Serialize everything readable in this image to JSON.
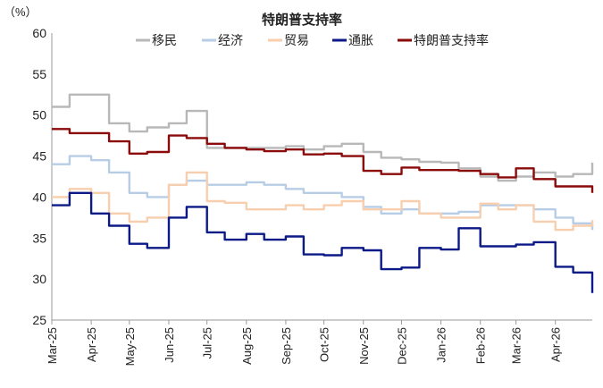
{
  "chart_data": {
    "type": "line",
    "title": "特朗普支持率",
    "ylabel": "（%）",
    "ylim": [
      25,
      60
    ],
    "yticks": [
      25,
      30,
      35,
      40,
      45,
      50,
      55,
      60
    ],
    "xlim": [
      "2025-03-01",
      "2026-04-30"
    ],
    "xticks": [
      {
        "date": "2025-03-01",
        "label": "Mar-25"
      },
      {
        "date": "2025-04-01",
        "label": "Apr-25"
      },
      {
        "date": "2025-05-01",
        "label": "May-25"
      },
      {
        "date": "2025-06-01",
        "label": "Jun-25"
      },
      {
        "date": "2025-07-01",
        "label": "Jul-25"
      },
      {
        "date": "2025-08-01",
        "label": "Aug-25"
      },
      {
        "date": "2025-09-01",
        "label": "Sep-25"
      },
      {
        "date": "2025-10-01",
        "label": "Oct-25"
      },
      {
        "date": "2025-11-01",
        "label": "Nov-25"
      },
      {
        "date": "2025-12-01",
        "label": "Dec-25"
      },
      {
        "date": "2026-01-01",
        "label": "Jan-26"
      },
      {
        "date": "2026-02-01",
        "label": "Feb-26"
      },
      {
        "date": "2026-03-01",
        "label": "Mar-26"
      },
      {
        "date": "2026-04-01",
        "label": "Apr-26"
      }
    ],
    "grid": false,
    "legend_position": "top",
    "x": [
      "2025-03-01",
      "2025-03-15",
      "2025-04-01",
      "2025-04-15",
      "2025-05-01",
      "2025-05-15",
      "2025-06-01",
      "2025-06-15",
      "2025-07-01",
      "2025-07-15",
      "2025-08-01",
      "2025-08-15",
      "2025-09-01",
      "2025-09-15",
      "2025-10-01",
      "2025-10-15",
      "2025-11-01",
      "2025-11-15",
      "2025-12-01",
      "2025-12-15",
      "2026-01-01",
      "2026-01-15",
      "2026-02-01",
      "2026-02-15",
      "2026-03-01",
      "2026-03-15",
      "2026-04-01",
      "2026-04-15",
      "2026-04-30"
    ],
    "series": [
      {
        "name": "移民",
        "color": "#b8b8b8",
        "values": [
          51,
          52.5,
          52.5,
          49,
          48,
          48.5,
          49,
          50.5,
          46,
          46,
          46,
          46,
          46.2,
          45.8,
          46.2,
          46.5,
          45.5,
          44.8,
          44.6,
          44.3,
          44.2,
          43.5,
          42.5,
          42,
          42.5,
          43,
          42.5,
          42.8,
          44.2
        ]
      },
      {
        "name": "经济",
        "color": "#b7cde6",
        "values": [
          44,
          45,
          44.5,
          43,
          40.5,
          40,
          41.5,
          42,
          41.5,
          41.5,
          41.8,
          41.5,
          41,
          40.5,
          40.5,
          40,
          38.8,
          38,
          38.5,
          38,
          38,
          38.2,
          39,
          39,
          39,
          38.5,
          37.5,
          36.8,
          36
        ]
      },
      {
        "name": "贸易",
        "color": "#f8cfae",
        "values": [
          40,
          41,
          40.5,
          38,
          37,
          37.5,
          41.5,
          43,
          39.5,
          39.3,
          38.5,
          38.5,
          39,
          38.5,
          39,
          39.5,
          38.5,
          38.5,
          39.5,
          38,
          37.5,
          37.5,
          39.2,
          38.5,
          39,
          37,
          36,
          36.5,
          37.2
        ]
      },
      {
        "name": "通胀",
        "color": "#0b1a87",
        "values": [
          39,
          40.5,
          38,
          36.5,
          34.3,
          33.8,
          37.5,
          38.8,
          35.7,
          34.8,
          35.5,
          34.8,
          35.2,
          33,
          32.9,
          33.8,
          33.5,
          31.2,
          31.4,
          33.8,
          33.6,
          36.2,
          34,
          34,
          34.2,
          34.5,
          31.5,
          30.8,
          28.3
        ]
      },
      {
        "name": "特朗普支持率",
        "color": "#8b0a0a",
        "values": [
          48.3,
          47.8,
          47.8,
          46.8,
          45.3,
          45.5,
          47.5,
          47.2,
          46.5,
          46,
          45.8,
          45.6,
          45.8,
          45.2,
          45.3,
          45,
          43.2,
          42.8,
          43.6,
          43.3,
          43.3,
          43.2,
          42.8,
          42.4,
          43.5,
          42.2,
          41.3,
          41.3,
          40.5
        ]
      }
    ]
  }
}
